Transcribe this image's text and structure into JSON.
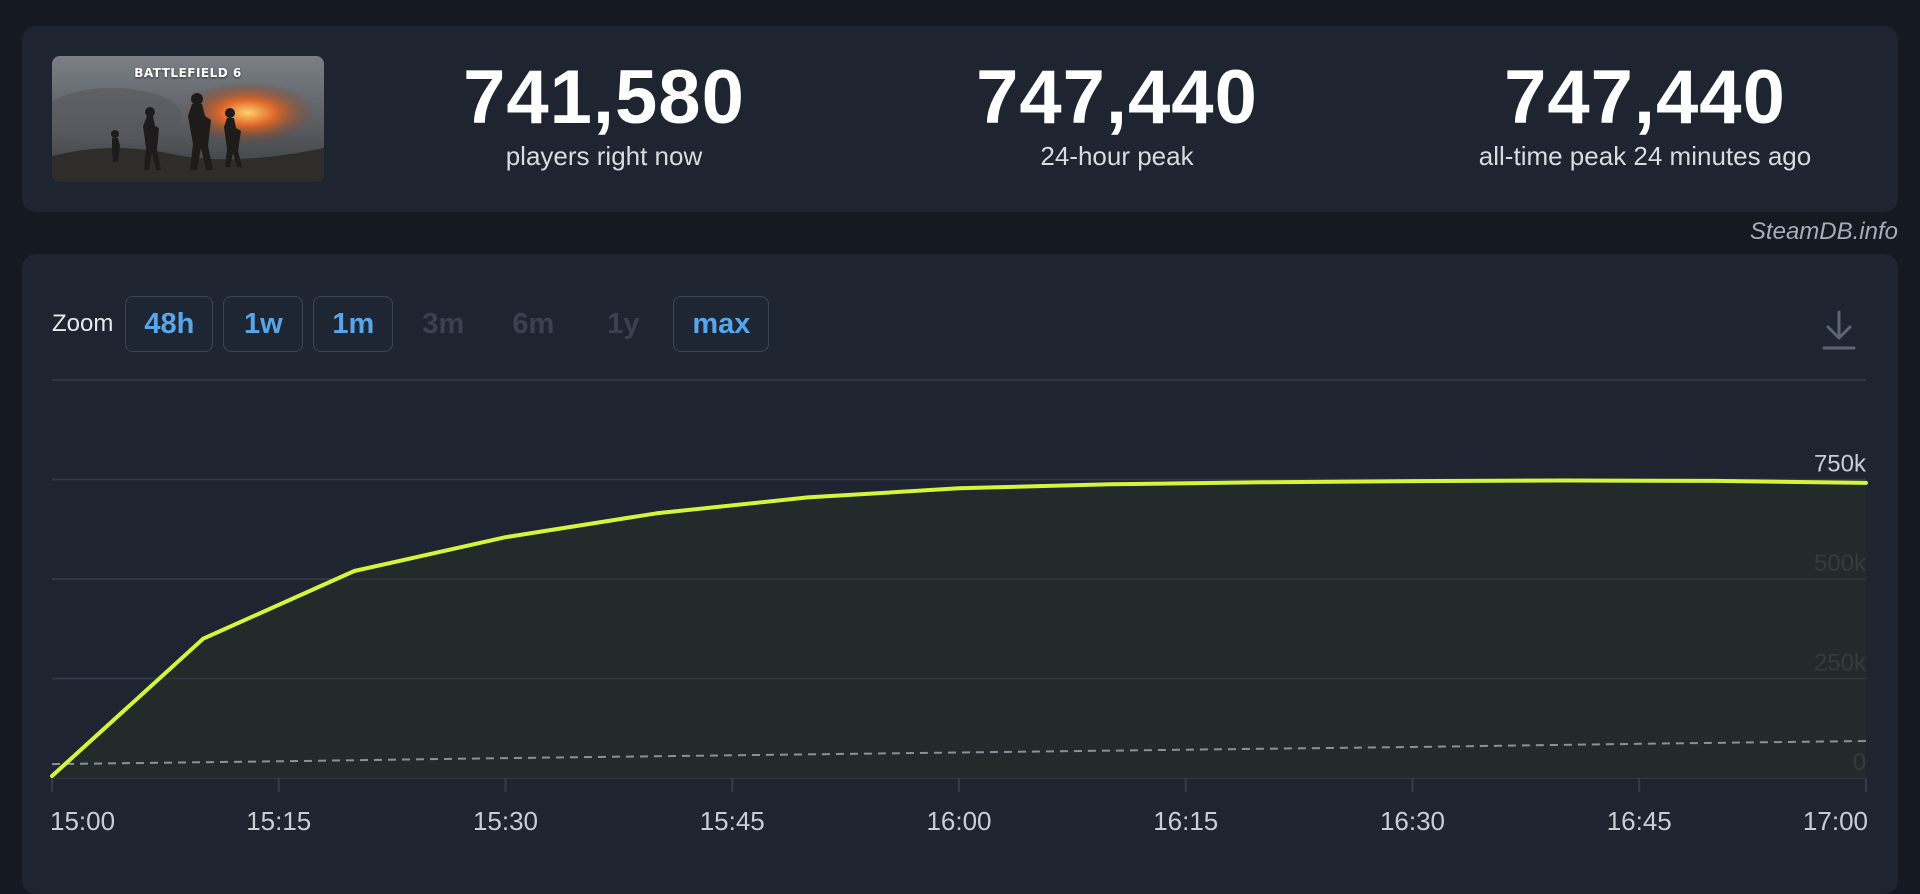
{
  "header": {
    "game_title": "BATTLEFIELD 6",
    "stats": [
      {
        "value": "741,580",
        "label": "players right now"
      },
      {
        "value": "747,440",
        "label": "24-hour peak"
      },
      {
        "value": "747,440",
        "label": "all-time peak 24 minutes ago"
      }
    ]
  },
  "credit": "SteamDB.info",
  "zoom": {
    "label": "Zoom",
    "buttons": [
      {
        "label": "48h",
        "enabled": true
      },
      {
        "label": "1w",
        "enabled": true
      },
      {
        "label": "1m",
        "enabled": true
      },
      {
        "label": "3m",
        "enabled": false
      },
      {
        "label": "6m",
        "enabled": false
      },
      {
        "label": "1y",
        "enabled": false
      },
      {
        "label": "max",
        "enabled": true
      }
    ]
  },
  "icons": {
    "download": "download-icon"
  },
  "colors": {
    "line": "#d4f53c",
    "area": "#242b2a",
    "secondary_line": "#8a919c",
    "grid": "#343c49",
    "axis_text": "#c9ced6",
    "zoom_active": "#58a6ea"
  },
  "chart_data": {
    "type": "line",
    "title": "",
    "xlabel": "",
    "ylabel": "",
    "x_ticks": [
      "15:00",
      "15:15",
      "15:30",
      "15:45",
      "16:00",
      "16:15",
      "16:30",
      "16:45",
      "17:00"
    ],
    "y_ticks": [
      {
        "value": 0,
        "label": "0"
      },
      {
        "value": 250000,
        "label": "250k"
      },
      {
        "value": 500000,
        "label": "500k"
      },
      {
        "value": 750000,
        "label": "750k"
      }
    ],
    "xlim": [
      "15:00",
      "17:00"
    ],
    "ylim": [
      0,
      1000000
    ],
    "grid": true,
    "series": [
      {
        "style": "solid",
        "x": [
          "15:00",
          "15:10",
          "15:20",
          "15:30",
          "15:40",
          "15:50",
          "16:00",
          "16:10",
          "16:20",
          "16:30",
          "16:40",
          "16:50",
          "17:00"
        ],
        "values": [
          5000,
          350000,
          520000,
          605000,
          665000,
          705000,
          728000,
          738000,
          743000,
          746000,
          747440,
          746500,
          741580
        ]
      },
      {
        "style": "dashed",
        "x": [
          "15:00",
          "15:15",
          "15:30",
          "15:45",
          "16:00",
          "16:15",
          "16:30",
          "16:45",
          "17:00"
        ],
        "values": [
          35000,
          42000,
          50000,
          57000,
          64000,
          71000,
          78000,
          86000,
          93000
        ]
      }
    ]
  }
}
